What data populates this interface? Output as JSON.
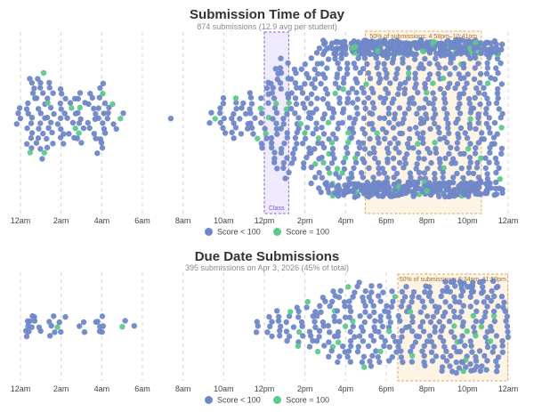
{
  "colors": {
    "below": "#7087c8",
    "perfect": "#5cc98a",
    "grid": "#d6d6d6",
    "axis_text": "#444444",
    "class_fill": "#efeafd",
    "class_stroke": "#8b63e0",
    "class_text": "#7b55d8",
    "window_fill": "#fdf4e6",
    "window_stroke": "#e0a85a",
    "window_text": "#a4712c"
  },
  "legend": [
    {
      "label": "Score < 100",
      "color_key": "below"
    },
    {
      "label": "Score = 100",
      "color_key": "perfect"
    }
  ],
  "chart_data": [
    {
      "type": "scatter",
      "title": "Submission Time of Day",
      "subtitle": "874 submissions (12.9 avg per student)",
      "x_ticks": [
        "12am",
        "2am",
        "4am",
        "6am",
        "8am",
        "10am",
        "12pm",
        "2pm",
        "4pm",
        "6pm",
        "8pm",
        "10pm",
        "12am"
      ],
      "x_range_hours": [
        0,
        24
      ],
      "grid": true,
      "density": [
        {
          "hour": 0.0,
          "count": 4
        },
        {
          "hour": 0.5,
          "count": 16
        },
        {
          "hour": 1.0,
          "count": 18
        },
        {
          "hour": 1.5,
          "count": 14
        },
        {
          "hour": 2.0,
          "count": 12
        },
        {
          "hour": 2.5,
          "count": 9
        },
        {
          "hour": 3.0,
          "count": 11
        },
        {
          "hour": 3.5,
          "count": 10
        },
        {
          "hour": 4.0,
          "count": 15
        },
        {
          "hour": 4.5,
          "count": 6
        },
        {
          "hour": 5.0,
          "count": 2
        },
        {
          "hour": 7.2,
          "count": 1
        },
        {
          "hour": 9.5,
          "count": 3
        },
        {
          "hour": 10.0,
          "count": 8
        },
        {
          "hour": 10.5,
          "count": 9
        },
        {
          "hour": 11.0,
          "count": 7
        },
        {
          "hour": 11.5,
          "count": 10
        },
        {
          "hour": 12.0,
          "count": 14
        },
        {
          "hour": 12.5,
          "count": 21
        },
        {
          "hour": 13.0,
          "count": 25
        },
        {
          "hour": 13.5,
          "count": 20
        },
        {
          "hour": 14.0,
          "count": 22
        },
        {
          "hour": 14.5,
          "count": 29
        },
        {
          "hour": 15.0,
          "count": 38
        },
        {
          "hour": 15.5,
          "count": 45
        },
        {
          "hour": 16.0,
          "count": 52
        },
        {
          "hour": 16.5,
          "count": 58
        },
        {
          "hour": 17.0,
          "count": 70
        },
        {
          "hour": 17.5,
          "count": 66
        },
        {
          "hour": 18.0,
          "count": 62
        },
        {
          "hour": 18.5,
          "count": 64
        },
        {
          "hour": 19.0,
          "count": 60
        },
        {
          "hour": 19.5,
          "count": 58
        },
        {
          "hour": 20.0,
          "count": 62
        },
        {
          "hour": 20.5,
          "count": 60
        },
        {
          "hour": 21.0,
          "count": 64
        },
        {
          "hour": 21.5,
          "count": 70
        },
        {
          "hour": 22.0,
          "count": 68
        },
        {
          "hour": 22.5,
          "count": 62
        },
        {
          "hour": 23.0,
          "count": 50
        },
        {
          "hour": 23.5,
          "count": 40
        }
      ],
      "perfect_share": 0.08,
      "annotations": [
        {
          "kind": "band",
          "start_hour": 12.0,
          "end_hour": 13.2,
          "label": "Class"
        },
        {
          "kind": "window",
          "start_hour": 16.97,
          "end_hour": 22.68,
          "label": "50% of submissions: 4:58pm–10:41pm"
        }
      ]
    },
    {
      "type": "scatter",
      "title": "Due Date Submissions",
      "subtitle": "395 submissions on Apr 3, 2026 (45% of total)",
      "x_ticks": [
        "12am",
        "2am",
        "4am",
        "6am",
        "8am",
        "10am",
        "12pm",
        "2pm",
        "4pm",
        "6pm",
        "8pm",
        "10pm",
        "12am"
      ],
      "x_range_hours": [
        0,
        24
      ],
      "grid": true,
      "density": [
        {
          "hour": 0.25,
          "count": 3
        },
        {
          "hour": 0.5,
          "count": 5
        },
        {
          "hour": 0.8,
          "count": 4
        },
        {
          "hour": 1.5,
          "count": 5
        },
        {
          "hour": 2.0,
          "count": 4
        },
        {
          "hour": 3.0,
          "count": 3
        },
        {
          "hour": 3.7,
          "count": 3
        },
        {
          "hour": 4.0,
          "count": 4
        },
        {
          "hour": 5.0,
          "count": 2
        },
        {
          "hour": 5.4,
          "count": 1
        },
        {
          "hour": 11.8,
          "count": 3
        },
        {
          "hour": 12.3,
          "count": 5
        },
        {
          "hour": 12.8,
          "count": 6
        },
        {
          "hour": 13.3,
          "count": 7
        },
        {
          "hour": 13.8,
          "count": 9
        },
        {
          "hour": 14.3,
          "count": 10
        },
        {
          "hour": 14.8,
          "count": 12
        },
        {
          "hour": 15.3,
          "count": 14
        },
        {
          "hour": 15.8,
          "count": 15
        },
        {
          "hour": 16.3,
          "count": 16
        },
        {
          "hour": 16.8,
          "count": 18
        },
        {
          "hour": 17.3,
          "count": 17
        },
        {
          "hour": 17.8,
          "count": 16
        },
        {
          "hour": 18.3,
          "count": 15
        },
        {
          "hour": 18.8,
          "count": 16
        },
        {
          "hour": 19.3,
          "count": 15
        },
        {
          "hour": 19.8,
          "count": 17
        },
        {
          "hour": 20.3,
          "count": 16
        },
        {
          "hour": 20.8,
          "count": 20
        },
        {
          "hour": 21.3,
          "count": 22
        },
        {
          "hour": 21.8,
          "count": 25
        },
        {
          "hour": 22.3,
          "count": 24
        },
        {
          "hour": 22.8,
          "count": 22
        },
        {
          "hour": 23.3,
          "count": 20
        },
        {
          "hour": 23.8,
          "count": 12
        }
      ],
      "perfect_share": 0.08,
      "annotations": [
        {
          "kind": "window",
          "start_hour": 18.57,
          "end_hour": 23.98,
          "label": "50% of submissions: 6:34pm–11:59pm"
        }
      ]
    }
  ]
}
